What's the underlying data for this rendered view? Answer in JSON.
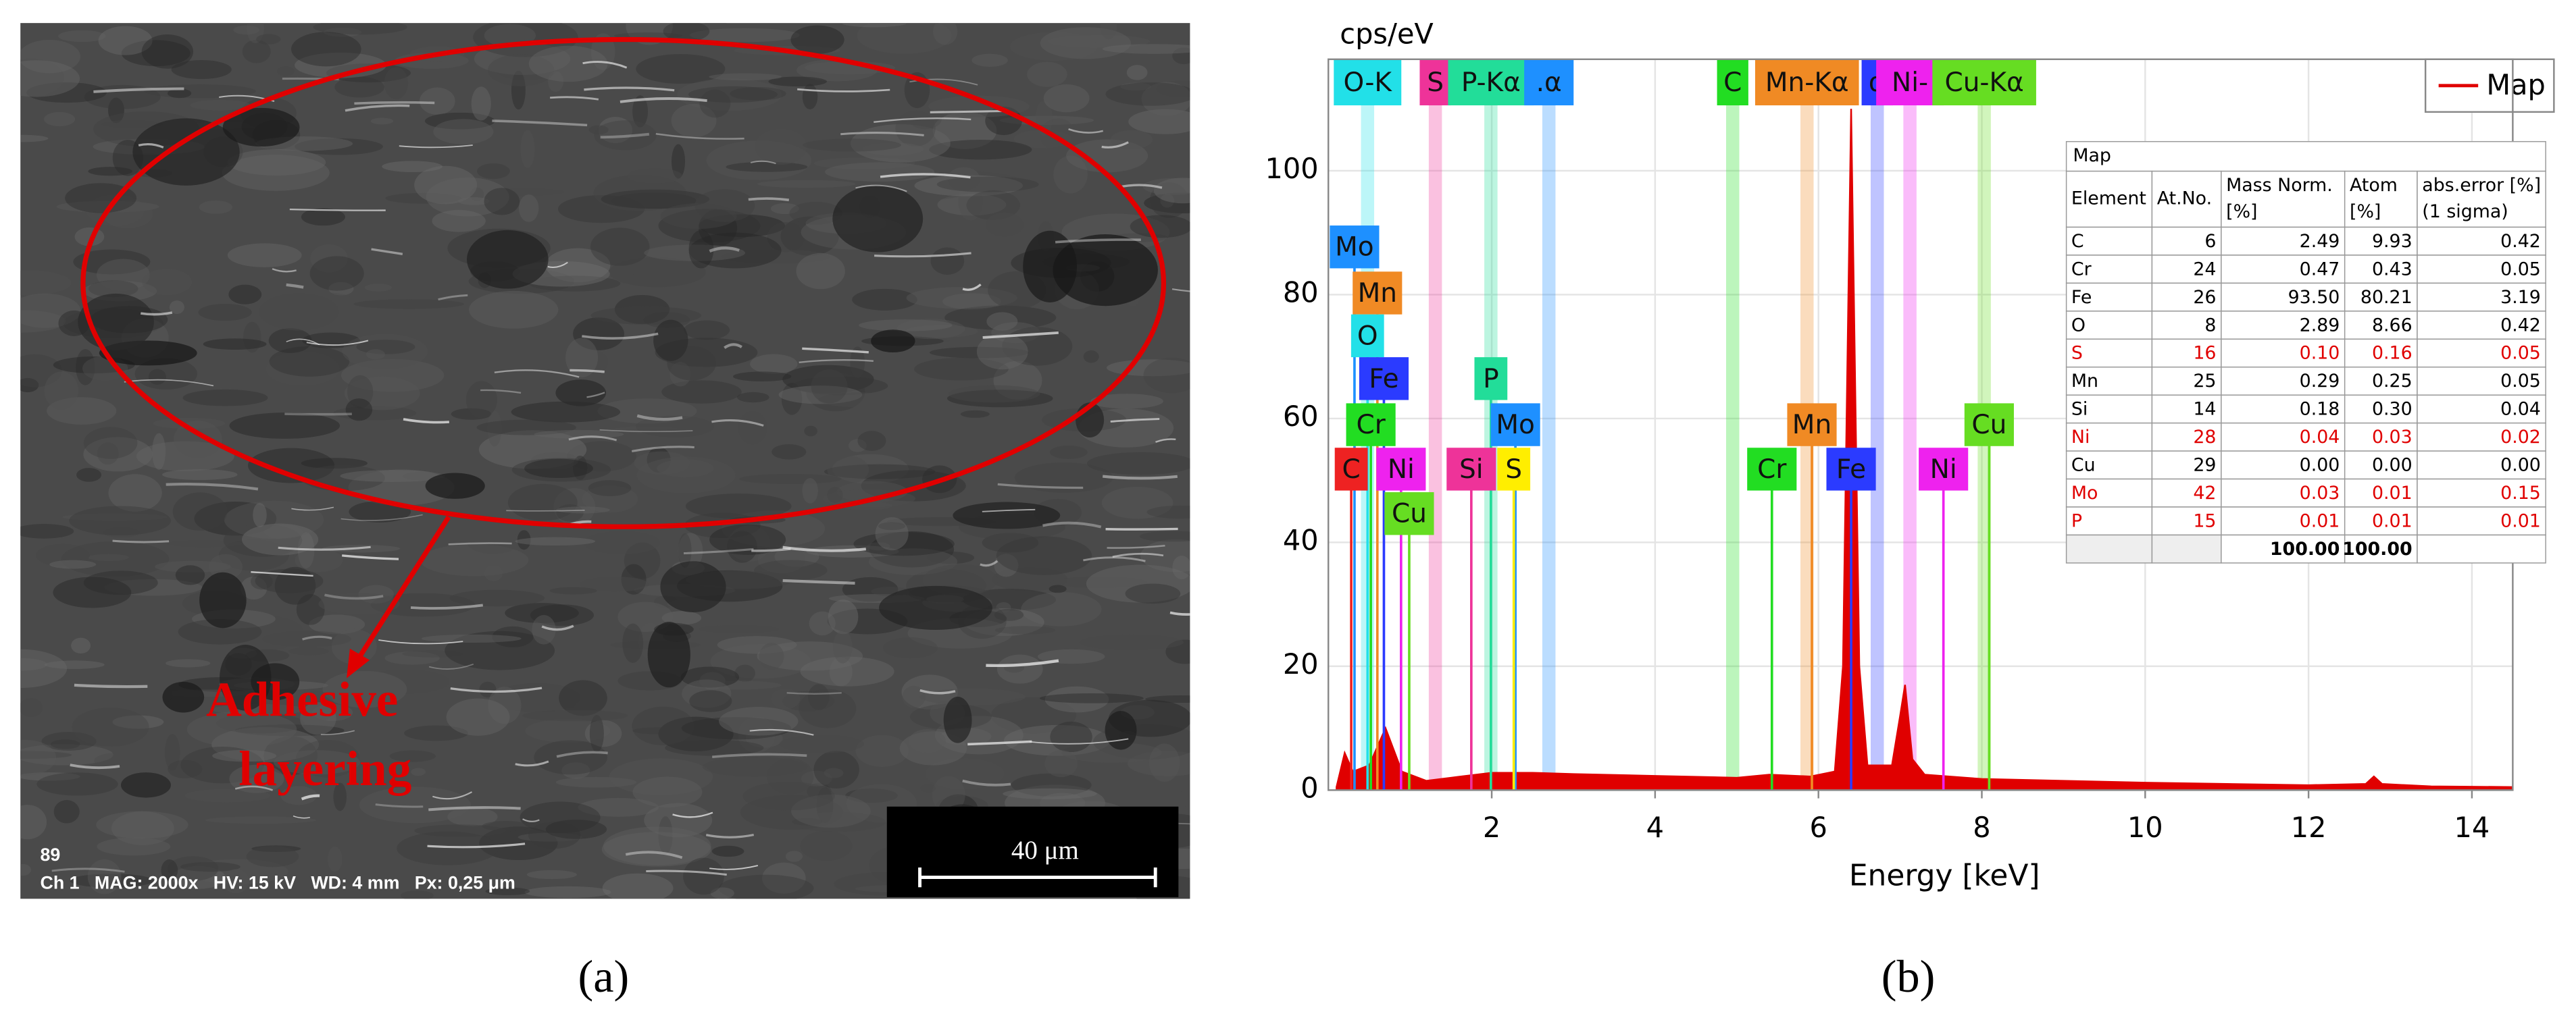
{
  "panel_a": {
    "caption": "(a)",
    "annotation": [
      "Adhesive",
      "layering"
    ],
    "scale_bar": "40 μm",
    "info_line_1": "89",
    "info_line_2": "Ch 1   MAG: 2000x   HV: 15 kV   WD: 4 mm   Px: 0,25 μm"
  },
  "panel_b_caption": "(b)",
  "chart_data": {
    "type": "area",
    "y_label": "cps/eV",
    "x_label": "Energy [keV]",
    "xlim": [
      0,
      14.5
    ],
    "ylim": [
      0,
      118
    ],
    "xticks": [
      2,
      4,
      6,
      8,
      10,
      12,
      14
    ],
    "yticks": [
      0,
      20,
      40,
      60,
      80,
      100
    ],
    "grid": true,
    "legend": "upper right",
    "series": [
      {
        "name": "Map",
        "color": "#e00000",
        "x": [
          0.1,
          0.2,
          0.3,
          0.5,
          0.7,
          0.9,
          1.2,
          1.5,
          2,
          2.5,
          3,
          4,
          5,
          5.4,
          5.9,
          6.2,
          6.3,
          6.4,
          6.5,
          6.6,
          6.9,
          7.0,
          7.06,
          7.15,
          7.3,
          8,
          9,
          10,
          11,
          12,
          12.7,
          12.8,
          12.9,
          13.5,
          14.5
        ],
        "values": [
          0.5,
          6,
          3,
          4,
          10,
          3,
          1.5,
          2,
          2.8,
          2.8,
          2.6,
          2.3,
          2,
          2.5,
          2.2,
          3,
          20,
          110,
          20,
          4,
          4,
          12,
          17,
          5,
          2.5,
          1.8,
          1.5,
          1.2,
          1,
          0.8,
          1,
          2.2,
          1,
          0.6,
          0.5
        ]
      }
    ],
    "element_markers": [
      {
        "label": "Mo",
        "energy": 0.32,
        "color": "#1e90ff"
      },
      {
        "label": "Mn",
        "energy": 0.6,
        "color": "#f08a24"
      },
      {
        "label": "O",
        "energy": 0.48,
        "color": "#22e0e8"
      },
      {
        "label": "Fe",
        "energy": 0.68,
        "color": "#2b3bff"
      },
      {
        "label": "Cr",
        "energy": 0.52,
        "color": "#22dd22"
      },
      {
        "label": "C",
        "energy": 0.28,
        "color": "#ee2222"
      },
      {
        "label": "Ni",
        "energy": 0.89,
        "color": "#ee22ee"
      },
      {
        "label": "Cu",
        "energy": 0.99,
        "color": "#66dd22"
      },
      {
        "label": "P",
        "energy": 1.99,
        "color": "#22dd99"
      },
      {
        "label": "Mo",
        "energy": 2.29,
        "color": "#1e90ff"
      },
      {
        "label": "Si",
        "energy": 1.75,
        "color": "#ee3399"
      },
      {
        "label": "S",
        "energy": 2.27,
        "color": "#ffee00"
      },
      {
        "label": "Cr",
        "energy": 5.43,
        "color": "#22dd22"
      },
      {
        "label": "Mn",
        "energy": 5.92,
        "color": "#f08a24"
      },
      {
        "label": "Fe",
        "energy": 6.4,
        "color": "#2b3bff"
      },
      {
        "label": "Ni",
        "energy": 7.53,
        "color": "#ee22ee"
      },
      {
        "label": "Cu",
        "energy": 8.09,
        "color": "#66dd22"
      }
    ],
    "top_labels": [
      {
        "label": "O-K",
        "energy": 0.48,
        "color": "#22e0e8"
      },
      {
        "label": "S",
        "energy": 1.31,
        "color": "#ee3399"
      },
      {
        "label": "P-Kα",
        "energy": 1.99,
        "color": "#22dd99"
      },
      {
        "label": ".α",
        "energy": 2.7,
        "color": "#1e90ff"
      },
      {
        "label": "C",
        "energy": 4.95,
        "color": "#22dd22"
      },
      {
        "label": "Mn-Kα",
        "energy": 5.86,
        "color": "#f08a24"
      },
      {
        "label": "α",
        "energy": 6.72,
        "color": "#2b3bff"
      },
      {
        "label": "Ni-",
        "energy": 7.12,
        "color": "#ee22ee"
      },
      {
        "label": "Cu-Kα",
        "energy": 8.03,
        "color": "#66dd22"
      }
    ]
  },
  "table": {
    "title": "Map",
    "header": [
      [
        "Element"
      ],
      [
        "At.No."
      ],
      [
        "Mass Norm.",
        "[%]"
      ],
      [
        "Atom",
        "[%]"
      ],
      [
        "abs.error [%]",
        "(1 sigma)"
      ]
    ],
    "rows": [
      [
        "C",
        "6",
        "2.49",
        "9.93",
        "0.42"
      ],
      [
        "Cr",
        "24",
        "0.47",
        "0.43",
        "0.05"
      ],
      [
        "Fe",
        "26",
        "93.50",
        "80.21",
        "3.19"
      ],
      [
        "O",
        "8",
        "2.89",
        "8.66",
        "0.42"
      ],
      [
        "S",
        "16",
        "0.10",
        "0.16",
        "0.05"
      ],
      [
        "Mn",
        "25",
        "0.29",
        "0.25",
        "0.05"
      ],
      [
        "Si",
        "14",
        "0.18",
        "0.30",
        "0.04"
      ],
      [
        "Ni",
        "28",
        "0.04",
        "0.03",
        "0.02"
      ],
      [
        "Cu",
        "29",
        "0.00",
        "0.00",
        "0.00"
      ],
      [
        "Mo",
        "42",
        "0.03",
        "0.01",
        "0.15"
      ],
      [
        "P",
        "15",
        "0.01",
        "0.01",
        "0.01"
      ]
    ],
    "row_colors": [
      "#000000",
      "#000000",
      "#000000",
      "#000000",
      "#e00000",
      "#000000",
      "#000000",
      "#e00000",
      "#000000",
      "#e00000",
      "#e00000"
    ],
    "total": {
      "mass": "100.00",
      "atom": "100.00"
    }
  }
}
